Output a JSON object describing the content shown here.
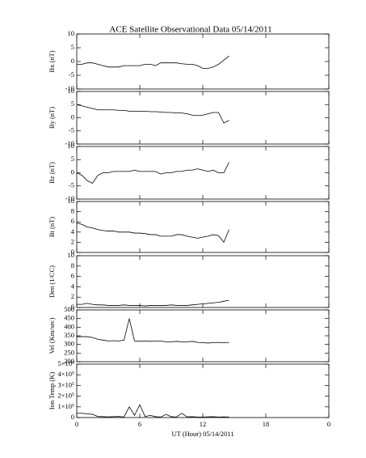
{
  "title": "ACE Satellite Observational Data   05/14/2011",
  "chart_data": [
    {
      "type": "line",
      "ylabel": "Bx (nT)",
      "color": "#000000",
      "ylim": [
        -10,
        10
      ],
      "yticks": [
        -10,
        -5,
        0,
        5,
        10
      ],
      "x": [
        0,
        0.5,
        1,
        1.5,
        2,
        2.5,
        3,
        3.5,
        4,
        4.5,
        5,
        5.5,
        6,
        6.5,
        7,
        7.5,
        8,
        8.5,
        9,
        9.5,
        10,
        10.5,
        11,
        11.5,
        12,
        12.5,
        13,
        13.5,
        14,
        14.5
      ],
      "values": [
        -1,
        -1,
        -0.5,
        -0.5,
        -1,
        -1.5,
        -2,
        -2,
        -2,
        -1.5,
        -1.5,
        -1.5,
        -1.5,
        -1,
        -1,
        -1.5,
        -0.5,
        -0.5,
        -0.5,
        -0.5,
        -0.8,
        -1,
        -1,
        -1.5,
        -2.5,
        -2.5,
        -2,
        -1,
        0.5,
        2
      ]
    },
    {
      "type": "line",
      "ylabel": "By (nT)",
      "color": "#000000",
      "ylim": [
        -10,
        10
      ],
      "yticks": [
        -10,
        -5,
        0,
        5,
        10
      ],
      "x": [
        0,
        0.5,
        1,
        1.5,
        2,
        2.5,
        3,
        3.5,
        4,
        4.5,
        5,
        5.5,
        6,
        6.5,
        7,
        7.5,
        8,
        8.5,
        9,
        9.5,
        10,
        10.5,
        11,
        11.5,
        12,
        12.5,
        13,
        13.5,
        14,
        14.5
      ],
      "values": [
        5,
        4.5,
        4,
        3.5,
        3,
        3,
        3,
        3,
        2.8,
        2.8,
        2.5,
        2.5,
        2.5,
        2.5,
        2.3,
        2.3,
        2.2,
        2,
        2,
        1.8,
        1.8,
        1.5,
        1,
        0.8,
        1,
        1.5,
        2,
        2,
        -2,
        -1
      ]
    },
    {
      "type": "line",
      "ylabel": "Bz (nT)",
      "color": "#000000",
      "ylim": [
        -10,
        10
      ],
      "yticks": [
        -10,
        -5,
        0,
        5,
        10
      ],
      "x": [
        0,
        0.5,
        1,
        1.5,
        2,
        2.5,
        3,
        3.5,
        4,
        4.5,
        5,
        5.5,
        6,
        6.5,
        7,
        7.5,
        8,
        8.5,
        9,
        9.5,
        10,
        10.5,
        11,
        11.5,
        12,
        12.5,
        13,
        13.5,
        14,
        14.5
      ],
      "values": [
        0,
        -1,
        -3,
        -4,
        -1,
        0,
        0,
        0.5,
        0.5,
        0.5,
        0.5,
        1,
        0.5,
        0.5,
        0.5,
        0.5,
        -0.5,
        0,
        0,
        0.5,
        0.5,
        1,
        1,
        1.5,
        1,
        0.5,
        1,
        0,
        0,
        4
      ]
    },
    {
      "type": "line",
      "ylabel": "Bt (nT)",
      "color": "#000000",
      "ylim": [
        0,
        10
      ],
      "yticks": [
        0,
        2,
        4,
        6,
        8,
        10
      ],
      "x": [
        0,
        0.5,
        1,
        1.5,
        2,
        2.5,
        3,
        3.5,
        4,
        4.5,
        5,
        5.5,
        6,
        6.5,
        7,
        7.5,
        8,
        8.5,
        9,
        9.5,
        10,
        10.5,
        11,
        11.5,
        12,
        12.5,
        13,
        13.5,
        14,
        14.5
      ],
      "values": [
        5.8,
        5.5,
        5,
        4.8,
        4.5,
        4.3,
        4.2,
        4.2,
        4,
        4,
        4,
        3.8,
        3.8,
        3.7,
        3.5,
        3.5,
        3.2,
        3.2,
        3.2,
        3.5,
        3.5,
        3.2,
        3,
        2.8,
        3,
        3.2,
        3.5,
        3.3,
        2,
        4.5
      ]
    },
    {
      "type": "line",
      "ylabel": "Den (1/CC)",
      "color": "#000000",
      "ylim": [
        0,
        10
      ],
      "yticks": [
        0,
        2,
        4,
        6,
        8,
        10
      ],
      "x": [
        0,
        0.5,
        1,
        1.5,
        2,
        2.5,
        3,
        3.5,
        4,
        4.5,
        5,
        5.5,
        6,
        6.5,
        7,
        7.5,
        8,
        8.5,
        9,
        9.5,
        10,
        10.5,
        11,
        11.5,
        12,
        12.5,
        13,
        13.5,
        14,
        14.5
      ],
      "values": [
        0.6,
        0.6,
        0.8,
        0.6,
        0.5,
        0.5,
        0.4,
        0.4,
        0.4,
        0.5,
        0.4,
        0.4,
        0.4,
        0.3,
        0.4,
        0.4,
        0.4,
        0.4,
        0.5,
        0.4,
        0.4,
        0.4,
        0.5,
        0.6,
        0.7,
        0.8,
        0.9,
        1,
        1.2,
        1.4
      ]
    },
    {
      "type": "line",
      "ylabel": "Vel (Km/sec)",
      "color": "#000000",
      "ylim": [
        200,
        500
      ],
      "yticks": [
        200,
        250,
        300,
        350,
        400,
        450,
        500
      ],
      "x": [
        0,
        0.5,
        1,
        1.5,
        2,
        2.5,
        3,
        3.5,
        4,
        4.5,
        5,
        5.5,
        6,
        6.5,
        7,
        7.5,
        8,
        8.5,
        9,
        9.5,
        10,
        10.5,
        11,
        11.5,
        12,
        12.5,
        13,
        13.5,
        14,
        14.5
      ],
      "values": [
        345,
        345,
        345,
        340,
        330,
        325,
        320,
        322,
        320,
        325,
        450,
        320,
        318,
        320,
        318,
        320,
        320,
        315,
        315,
        318,
        315,
        315,
        318,
        312,
        310,
        308,
        310,
        312,
        310,
        310
      ]
    },
    {
      "type": "line",
      "ylabel": "Ion Temp (K)",
      "color": "#000000",
      "ylim": [
        0,
        500000
      ],
      "yticks": [
        0,
        {
          "value": 100000,
          "label": "1×10⁵"
        },
        {
          "value": 200000,
          "label": "2×10⁵"
        },
        {
          "value": 300000,
          "label": "3×10⁵"
        },
        {
          "value": 400000,
          "label": "4×10⁵"
        },
        {
          "value": 500000,
          "label": "5×10⁵"
        }
      ],
      "x": [
        0,
        0.5,
        1,
        1.5,
        2,
        2.5,
        3,
        3.5,
        4,
        4.5,
        5,
        5.5,
        6,
        6.5,
        7,
        7.5,
        8,
        8.5,
        9,
        9.5,
        10,
        10.5,
        11,
        11.5,
        12,
        12.5,
        13,
        13.5,
        14,
        14.5
      ],
      "values": [
        40000,
        40000,
        35000,
        30000,
        10000,
        8000,
        6000,
        8000,
        10000,
        5000,
        100000,
        20000,
        120000,
        10000,
        20000,
        8000,
        5000,
        30000,
        8000,
        5000,
        40000,
        6000,
        8000,
        5000,
        5000,
        6000,
        8000,
        5000,
        6000,
        5000
      ],
      "xlabel": "UT (Hour)  05/14/2011",
      "xlim": [
        0,
        24
      ],
      "xticks": [
        0,
        6,
        12,
        18,
        {
          "value": 24,
          "label": "0"
        }
      ]
    }
  ]
}
